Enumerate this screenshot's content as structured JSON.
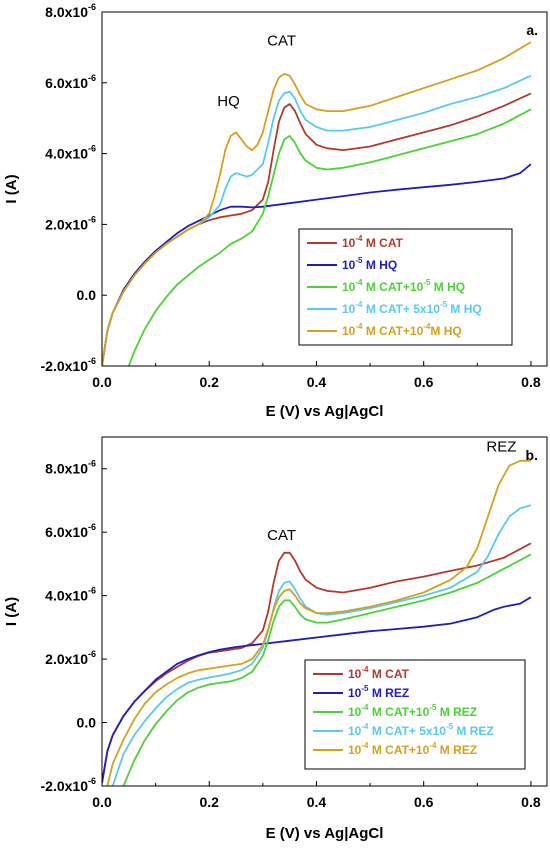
{
  "chart_data": [
    {
      "type": "line",
      "panel_label": "a.",
      "xlabel": "E (V) vs Ag|AgCl",
      "ylabel": "I (A)",
      "xlim": [
        0.0,
        0.83
      ],
      "ylim": [
        -2e-06,
        8e-06
      ],
      "xticks": [
        {
          "value": 0.0,
          "label": "0.0"
        },
        {
          "value": 0.2,
          "label": "0.2"
        },
        {
          "value": 0.4,
          "label": "0.4"
        },
        {
          "value": 0.6,
          "label": "0.6"
        },
        {
          "value": 0.8,
          "label": "0.8"
        }
      ],
      "yticks": [
        {
          "value": -2e-06,
          "mantissa": "-2.0x10",
          "exp": "-6"
        },
        {
          "value": 0.0,
          "mantissa": "0.0",
          "exp": ""
        },
        {
          "value": 2e-06,
          "mantissa": "2.0x10",
          "exp": "-6"
        },
        {
          "value": 4e-06,
          "mantissa": "4.0x10",
          "exp": "-6"
        },
        {
          "value": 6e-06,
          "mantissa": "6.0x10",
          "exp": "-6"
        },
        {
          "value": 8e-06,
          "mantissa": "8.0x10",
          "exp": "-6"
        }
      ],
      "annotations": [
        {
          "text": "HQ",
          "x": 0.236,
          "y": 5.35e-06
        },
        {
          "text": "CAT",
          "x": 0.335,
          "y": 7.05e-06
        }
      ],
      "legend": "lower-right",
      "series": [
        {
          "name": "10⁻⁴ M CAT",
          "label_parts": [
            [
              "10",
              "-4",
              " M CAT"
            ]
          ],
          "color": "#b03a2e",
          "x": [
            0.0,
            0.01,
            0.02,
            0.04,
            0.06,
            0.08,
            0.1,
            0.12,
            0.14,
            0.16,
            0.18,
            0.2,
            0.22,
            0.24,
            0.26,
            0.28,
            0.3,
            0.31,
            0.32,
            0.33,
            0.34,
            0.35,
            0.36,
            0.37,
            0.38,
            0.4,
            0.42,
            0.45,
            0.5,
            0.55,
            0.6,
            0.65,
            0.7,
            0.75,
            0.8
          ],
          "y": [
            -2e-06,
            -1e-06,
            -5e-07,
            1e-07,
            5.5e-07,
            9e-07,
            1.2e-06,
            1.45e-06,
            1.65e-06,
            1.85e-06,
            2e-06,
            2.12e-06,
            2.2e-06,
            2.25e-06,
            2.3e-06,
            2.4e-06,
            2.7e-06,
            3.2e-06,
            4.1e-06,
            4.9e-06,
            5.3e-06,
            5.4e-06,
            5.2e-06,
            4.85e-06,
            4.55e-06,
            4.25e-06,
            4.15e-06,
            4.1e-06,
            4.2e-06,
            4.4e-06,
            4.6e-06,
            4.8e-06,
            5.05e-06,
            5.35e-06,
            5.7e-06
          ]
        },
        {
          "name": "10⁻⁵ M HQ",
          "label_parts": [
            [
              "10",
              "-5",
              " M HQ"
            ]
          ],
          "color": "#1f1fb8",
          "x": [
            0.0,
            0.01,
            0.02,
            0.04,
            0.06,
            0.08,
            0.1,
            0.12,
            0.14,
            0.16,
            0.18,
            0.2,
            0.22,
            0.24,
            0.26,
            0.28,
            0.3,
            0.35,
            0.4,
            0.45,
            0.5,
            0.55,
            0.6,
            0.65,
            0.7,
            0.75,
            0.78,
            0.8
          ],
          "y": [
            -2e-06,
            -1e-06,
            -5e-07,
            1.5e-07,
            6e-07,
            9.5e-07,
            1.25e-06,
            1.5e-06,
            1.75e-06,
            1.95e-06,
            2.1e-06,
            2.25e-06,
            2.4e-06,
            2.5e-06,
            2.5e-06,
            2.48e-06,
            2.5e-06,
            2.6e-06,
            2.7e-06,
            2.8e-06,
            2.9e-06,
            2.98e-06,
            3.05e-06,
            3.12e-06,
            3.2e-06,
            3.3e-06,
            3.45e-06,
            3.7e-06
          ]
        },
        {
          "name": "10⁻⁴ M CAT+10⁻⁵ M HQ",
          "label_parts": [
            [
              "10",
              "-4",
              " M CAT+10"
            ],
            [
              "",
              "-5",
              " M HQ"
            ]
          ],
          "color": "#4cd137",
          "x": [
            0.05,
            0.06,
            0.08,
            0.1,
            0.12,
            0.14,
            0.16,
            0.18,
            0.2,
            0.22,
            0.24,
            0.26,
            0.28,
            0.3,
            0.31,
            0.32,
            0.33,
            0.34,
            0.35,
            0.36,
            0.37,
            0.38,
            0.4,
            0.42,
            0.45,
            0.5,
            0.55,
            0.6,
            0.65,
            0.7,
            0.75,
            0.8
          ],
          "y": [
            -2e-06,
            -1.6e-06,
            -9.5e-07,
            -4.5e-07,
            -5e-08,
            3e-07,
            5.5e-07,
            8e-07,
            1e-06,
            1.2e-06,
            1.45e-06,
            1.6e-06,
            1.8e-06,
            2.3e-06,
            2.8e-06,
            3.4e-06,
            4e-06,
            4.4e-06,
            4.5e-06,
            4.3e-06,
            4e-06,
            3.8e-06,
            3.6e-06,
            3.55e-06,
            3.6e-06,
            3.75e-06,
            3.95e-06,
            4.15e-06,
            4.35e-06,
            4.55e-06,
            4.85e-06,
            5.25e-06
          ]
        },
        {
          "name": "10⁻⁴ M CAT+ 5x10⁻⁵ M HQ",
          "label_parts": [
            [
              "10",
              "-4",
              " M CAT+ 5x10"
            ],
            [
              "",
              "-5",
              " M HQ"
            ]
          ],
          "color": "#5bc8ef",
          "x": [
            0.0,
            0.01,
            0.02,
            0.04,
            0.06,
            0.08,
            0.1,
            0.12,
            0.14,
            0.16,
            0.18,
            0.2,
            0.22,
            0.23,
            0.24,
            0.25,
            0.26,
            0.27,
            0.28,
            0.3,
            0.31,
            0.32,
            0.33,
            0.34,
            0.35,
            0.36,
            0.37,
            0.38,
            0.4,
            0.42,
            0.45,
            0.5,
            0.55,
            0.6,
            0.65,
            0.7,
            0.75,
            0.8
          ],
          "y": [
            -2e-06,
            -1e-06,
            -5e-07,
            1e-07,
            5.5e-07,
            9e-07,
            1.2e-06,
            1.45e-06,
            1.65e-06,
            1.85e-06,
            2e-06,
            2.2e-06,
            2.55e-06,
            3e-06,
            3.35e-06,
            3.45e-06,
            3.4e-06,
            3.35e-06,
            3.4e-06,
            3.7e-06,
            4.3e-06,
            5e-06,
            5.5e-06,
            5.7e-06,
            5.75e-06,
            5.55e-06,
            5.2e-06,
            4.95e-06,
            4.75e-06,
            4.65e-06,
            4.65e-06,
            4.75e-06,
            4.95e-06,
            5.15e-06,
            5.4e-06,
            5.6e-06,
            5.85e-06,
            6.2e-06
          ]
        },
        {
          "name": "10⁻⁴ M CAT+10⁻⁴M HQ",
          "label_parts": [
            [
              "10",
              "-4",
              " M CAT+10"
            ],
            [
              "",
              "-4",
              "M HQ"
            ]
          ],
          "color": "#d4a020",
          "x": [
            0.0,
            0.01,
            0.02,
            0.04,
            0.06,
            0.08,
            0.1,
            0.12,
            0.14,
            0.16,
            0.18,
            0.2,
            0.21,
            0.22,
            0.23,
            0.24,
            0.25,
            0.26,
            0.27,
            0.28,
            0.29,
            0.3,
            0.31,
            0.32,
            0.33,
            0.34,
            0.35,
            0.36,
            0.37,
            0.38,
            0.4,
            0.42,
            0.45,
            0.5,
            0.55,
            0.6,
            0.65,
            0.7,
            0.75,
            0.8
          ],
          "y": [
            -2e-06,
            -1e-06,
            -5e-07,
            1e-07,
            5.5e-07,
            9e-07,
            1.2e-06,
            1.45e-06,
            1.65e-06,
            1.85e-06,
            2e-06,
            2.3e-06,
            2.8e-06,
            3.4e-06,
            4.1e-06,
            4.5e-06,
            4.6e-06,
            4.4e-06,
            4.2e-06,
            4.1e-06,
            4.25e-06,
            4.6e-06,
            5.2e-06,
            5.8e-06,
            6.15e-06,
            6.25e-06,
            6.2e-06,
            5.95e-06,
            5.65e-06,
            5.4e-06,
            5.25e-06,
            5.2e-06,
            5.2e-06,
            5.35e-06,
            5.6e-06,
            5.85e-06,
            6.1e-06,
            6.35e-06,
            6.7e-06,
            7.15e-06
          ]
        }
      ]
    },
    {
      "type": "line",
      "panel_label": "b.",
      "xlabel": "E (V) vs Ag|AgCl",
      "ylabel": "I (A)",
      "xlim": [
        0.0,
        0.83
      ],
      "ylim": [
        -2e-06,
        9e-06
      ],
      "xticks": [
        {
          "value": 0.0,
          "label": "0.0"
        },
        {
          "value": 0.2,
          "label": "0.2"
        },
        {
          "value": 0.4,
          "label": "0.4"
        },
        {
          "value": 0.6,
          "label": "0.6"
        },
        {
          "value": 0.8,
          "label": "0.8"
        }
      ],
      "yticks": [
        {
          "value": -2e-06,
          "mantissa": "-2.0x10",
          "exp": "-6"
        },
        {
          "value": 0.0,
          "mantissa": "0.0",
          "exp": ""
        },
        {
          "value": 2e-06,
          "mantissa": "2.0x10",
          "exp": "-6"
        },
        {
          "value": 4e-06,
          "mantissa": "4.0x10",
          "exp": "-6"
        },
        {
          "value": 6e-06,
          "mantissa": "6.0x10",
          "exp": "-6"
        },
        {
          "value": 8e-06,
          "mantissa": "8.0x10",
          "exp": "-6"
        }
      ],
      "annotations": [
        {
          "text": "CAT",
          "x": 0.335,
          "y": 5.75e-06
        },
        {
          "text": "REZ",
          "x": 0.745,
          "y": 8.55e-06
        }
      ],
      "legend": "lower-right",
      "series": [
        {
          "name": "10⁻⁴ M CAT",
          "label_parts": [
            [
              "10",
              "-4",
              " M CAT"
            ]
          ],
          "color": "#b03a2e",
          "x": [
            0.0,
            0.01,
            0.02,
            0.04,
            0.06,
            0.08,
            0.1,
            0.12,
            0.14,
            0.16,
            0.18,
            0.2,
            0.22,
            0.24,
            0.26,
            0.28,
            0.3,
            0.31,
            0.32,
            0.33,
            0.34,
            0.35,
            0.36,
            0.37,
            0.38,
            0.4,
            0.42,
            0.45,
            0.5,
            0.55,
            0.6,
            0.65,
            0.7,
            0.75,
            0.8
          ],
          "y": [
            -1.9e-06,
            -9e-07,
            -4e-07,
            2e-07,
            6.5e-07,
            1e-06,
            1.3e-06,
            1.55e-06,
            1.75e-06,
            1.95e-06,
            2.1e-06,
            2.2e-06,
            2.25e-06,
            2.3e-06,
            2.35e-06,
            2.5e-06,
            2.9e-06,
            3.5e-06,
            4.4e-06,
            5.1e-06,
            5.35e-06,
            5.35e-06,
            5.1e-06,
            4.75e-06,
            4.5e-06,
            4.25e-06,
            4.15e-06,
            4.1e-06,
            4.25e-06,
            4.45e-06,
            4.6e-06,
            4.78e-06,
            4.95e-06,
            5.2e-06,
            5.65e-06
          ]
        },
        {
          "name": "10⁻⁵ M REZ",
          "label_parts": [
            [
              "10",
              "-5",
              " M REZ"
            ]
          ],
          "color": "#1f1fb8",
          "x": [
            0.0,
            0.01,
            0.02,
            0.04,
            0.06,
            0.08,
            0.1,
            0.12,
            0.14,
            0.16,
            0.18,
            0.2,
            0.22,
            0.25,
            0.3,
            0.35,
            0.4,
            0.45,
            0.5,
            0.55,
            0.6,
            0.65,
            0.7,
            0.73,
            0.75,
            0.78,
            0.8
          ],
          "y": [
            -1.9e-06,
            -9e-07,
            -4e-07,
            2e-07,
            6.5e-07,
            1e-06,
            1.35e-06,
            1.6e-06,
            1.85e-06,
            2e-06,
            2.12e-06,
            2.22e-06,
            2.3e-06,
            2.38e-06,
            2.48e-06,
            2.58e-06,
            2.68e-06,
            2.78e-06,
            2.88e-06,
            2.95e-06,
            3.02e-06,
            3.12e-06,
            3.32e-06,
            3.55e-06,
            3.65e-06,
            3.75e-06,
            3.95e-06
          ]
        },
        {
          "name": "10⁻⁴ M CAT+10⁻⁵ M REZ",
          "label_parts": [
            [
              "10",
              "-4",
              " M CAT+10"
            ],
            [
              "",
              "-5",
              " M REZ"
            ]
          ],
          "color": "#4cd137",
          "x": [
            0.04,
            0.06,
            0.08,
            0.1,
            0.12,
            0.14,
            0.16,
            0.18,
            0.2,
            0.22,
            0.24,
            0.26,
            0.28,
            0.3,
            0.31,
            0.32,
            0.33,
            0.34,
            0.35,
            0.36,
            0.37,
            0.38,
            0.4,
            0.42,
            0.45,
            0.5,
            0.55,
            0.6,
            0.65,
            0.7,
            0.75,
            0.8
          ],
          "y": [
            -2e-06,
            -1.2e-06,
            -5.5e-07,
            -5e-08,
            3.5e-07,
            7e-07,
            9.5e-07,
            1.1e-06,
            1.2e-06,
            1.25e-06,
            1.3e-06,
            1.4e-06,
            1.6e-06,
            2.1e-06,
            2.6e-06,
            3.2e-06,
            3.65e-06,
            3.85e-06,
            3.85e-06,
            3.65e-06,
            3.4e-06,
            3.25e-06,
            3.15e-06,
            3.15e-06,
            3.25e-06,
            3.45e-06,
            3.65e-06,
            3.85e-06,
            4.1e-06,
            4.4e-06,
            4.85e-06,
            5.3e-06
          ]
        },
        {
          "name": "10⁻⁴ M CAT+ 5x10⁻⁵ M REZ",
          "label_parts": [
            [
              "10",
              "-4",
              " M CAT+ 5x10"
            ],
            [
              "",
              "-5",
              " M REZ"
            ]
          ],
          "color": "#5bc8ef",
          "x": [
            0.02,
            0.04,
            0.06,
            0.08,
            0.1,
            0.12,
            0.14,
            0.16,
            0.18,
            0.2,
            0.22,
            0.24,
            0.26,
            0.28,
            0.3,
            0.31,
            0.32,
            0.33,
            0.34,
            0.35,
            0.36,
            0.37,
            0.38,
            0.4,
            0.42,
            0.45,
            0.5,
            0.55,
            0.6,
            0.65,
            0.7,
            0.72,
            0.74,
            0.76,
            0.78,
            0.8
          ],
          "y": [
            -2e-06,
            -1e-06,
            -4e-07,
            5e-08,
            4.5e-07,
            8e-07,
            1.05e-06,
            1.25e-06,
            1.35e-06,
            1.42e-06,
            1.48e-06,
            1.55e-06,
            1.65e-06,
            1.85e-06,
            2.35e-06,
            2.9e-06,
            3.6e-06,
            4.15e-06,
            4.4e-06,
            4.45e-06,
            4.2e-06,
            3.9e-06,
            3.65e-06,
            3.45e-06,
            3.4e-06,
            3.45e-06,
            3.6e-06,
            3.8e-06,
            4e-06,
            4.25e-06,
            4.75e-06,
            5.25e-06,
            5.95e-06,
            6.5e-06,
            6.75e-06,
            6.85e-06
          ]
        },
        {
          "name": "10⁻⁴ M CAT+10⁻⁴ M REZ",
          "label_parts": [
            [
              "10",
              "-4",
              " M CAT+10"
            ],
            [
              "",
              "-4",
              " M REZ"
            ]
          ],
          "color": "#d4a020",
          "x": [
            0.01,
            0.02,
            0.04,
            0.06,
            0.08,
            0.1,
            0.12,
            0.14,
            0.16,
            0.18,
            0.2,
            0.22,
            0.24,
            0.26,
            0.28,
            0.3,
            0.31,
            0.32,
            0.33,
            0.34,
            0.35,
            0.36,
            0.37,
            0.38,
            0.4,
            0.42,
            0.45,
            0.5,
            0.55,
            0.6,
            0.65,
            0.68,
            0.7,
            0.72,
            0.74,
            0.76,
            0.78,
            0.8
          ],
          "y": [
            -2e-06,
            -1.3e-06,
            -5.5e-07,
            1e-07,
            6e-07,
            9.5e-07,
            1.2e-06,
            1.4e-06,
            1.55e-06,
            1.65e-06,
            1.7e-06,
            1.75e-06,
            1.8e-06,
            1.85e-06,
            2e-06,
            2.45e-06,
            2.95e-06,
            3.55e-06,
            3.95e-06,
            4.15e-06,
            4.2e-06,
            4e-06,
            3.75e-06,
            3.6e-06,
            3.45e-06,
            3.45e-06,
            3.5e-06,
            3.65e-06,
            3.85e-06,
            4.1e-06,
            4.5e-06,
            4.9e-06,
            5.5e-06,
            6.5e-06,
            7.5e-06,
            8.1e-06,
            8.25e-06,
            8.25e-06
          ]
        }
      ]
    }
  ]
}
